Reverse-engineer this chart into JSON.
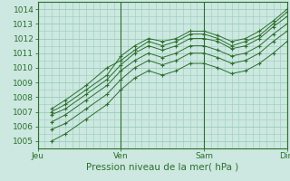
{
  "title": "",
  "xlabel": "Pression niveau de la mer( hPa )",
  "ylabel": "",
  "bg_color": "#cce8e0",
  "plot_bg_color": "#cce8e0",
  "grid_color": "#99ccbb",
  "line_color": "#2d6e2d",
  "marker_color": "#2d6e2d",
  "ylim": [
    1004.5,
    1014.5
  ],
  "xlim": [
    0,
    72
  ],
  "yticks": [
    1005,
    1006,
    1007,
    1008,
    1009,
    1010,
    1011,
    1012,
    1013,
    1014
  ],
  "xtick_positions": [
    0,
    24,
    48,
    72
  ],
  "xtick_labels": [
    "Jeu",
    "Ven",
    "Sam",
    "Dim"
  ],
  "lines": [
    {
      "x": [
        4,
        8,
        14,
        20,
        24,
        28,
        32,
        36,
        40,
        44,
        48,
        52,
        56,
        60,
        64,
        68,
        72
      ],
      "y": [
        1007.0,
        1007.5,
        1008.5,
        1009.5,
        1010.8,
        1011.5,
        1012.0,
        1011.8,
        1012.0,
        1012.5,
        1012.5,
        1012.2,
        1011.8,
        1012.0,
        1012.5,
        1013.2,
        1014.0
      ]
    },
    {
      "x": [
        4,
        8,
        14,
        20,
        24,
        28,
        32,
        36,
        40,
        44,
        48,
        52,
        56,
        60,
        64,
        68,
        72
      ],
      "y": [
        1007.2,
        1007.8,
        1008.8,
        1010.0,
        1010.5,
        1011.2,
        1011.8,
        1011.5,
        1011.8,
        1012.3,
        1012.3,
        1012.0,
        1011.5,
        1011.8,
        1012.2,
        1013.0,
        1013.8
      ]
    },
    {
      "x": [
        4,
        8,
        14,
        20,
        24,
        28,
        32,
        36,
        40,
        44,
        48,
        52,
        56,
        60,
        64,
        68,
        72
      ],
      "y": [
        1006.8,
        1007.2,
        1008.2,
        1009.2,
        1010.2,
        1011.0,
        1011.5,
        1011.2,
        1011.5,
        1012.0,
        1012.0,
        1011.8,
        1011.3,
        1011.5,
        1012.0,
        1012.8,
        1013.5
      ]
    },
    {
      "x": [
        4,
        8,
        14,
        20,
        24,
        28,
        32,
        36,
        40,
        44,
        48,
        52,
        56,
        60,
        64,
        68,
        72
      ],
      "y": [
        1006.3,
        1006.8,
        1007.8,
        1008.8,
        1009.8,
        1010.5,
        1011.0,
        1010.7,
        1011.0,
        1011.5,
        1011.5,
        1011.2,
        1010.8,
        1011.0,
        1011.5,
        1012.3,
        1013.0
      ]
    },
    {
      "x": [
        4,
        8,
        14,
        20,
        24,
        28,
        32,
        36,
        40,
        44,
        48,
        52,
        56,
        60,
        64,
        68,
        72
      ],
      "y": [
        1005.8,
        1006.2,
        1007.2,
        1008.2,
        1009.2,
        1010.0,
        1010.5,
        1010.2,
        1010.5,
        1011.0,
        1011.0,
        1010.7,
        1010.3,
        1010.5,
        1011.0,
        1011.8,
        1012.5
      ]
    },
    {
      "x": [
        4,
        8,
        14,
        20,
        24,
        28,
        32,
        36,
        40,
        44,
        48,
        52,
        56,
        60,
        64,
        68,
        72
      ],
      "y": [
        1005.0,
        1005.5,
        1006.5,
        1007.5,
        1008.5,
        1009.3,
        1009.8,
        1009.5,
        1009.8,
        1010.3,
        1010.3,
        1010.0,
        1009.6,
        1009.8,
        1010.3,
        1011.0,
        1011.8
      ]
    }
  ]
}
